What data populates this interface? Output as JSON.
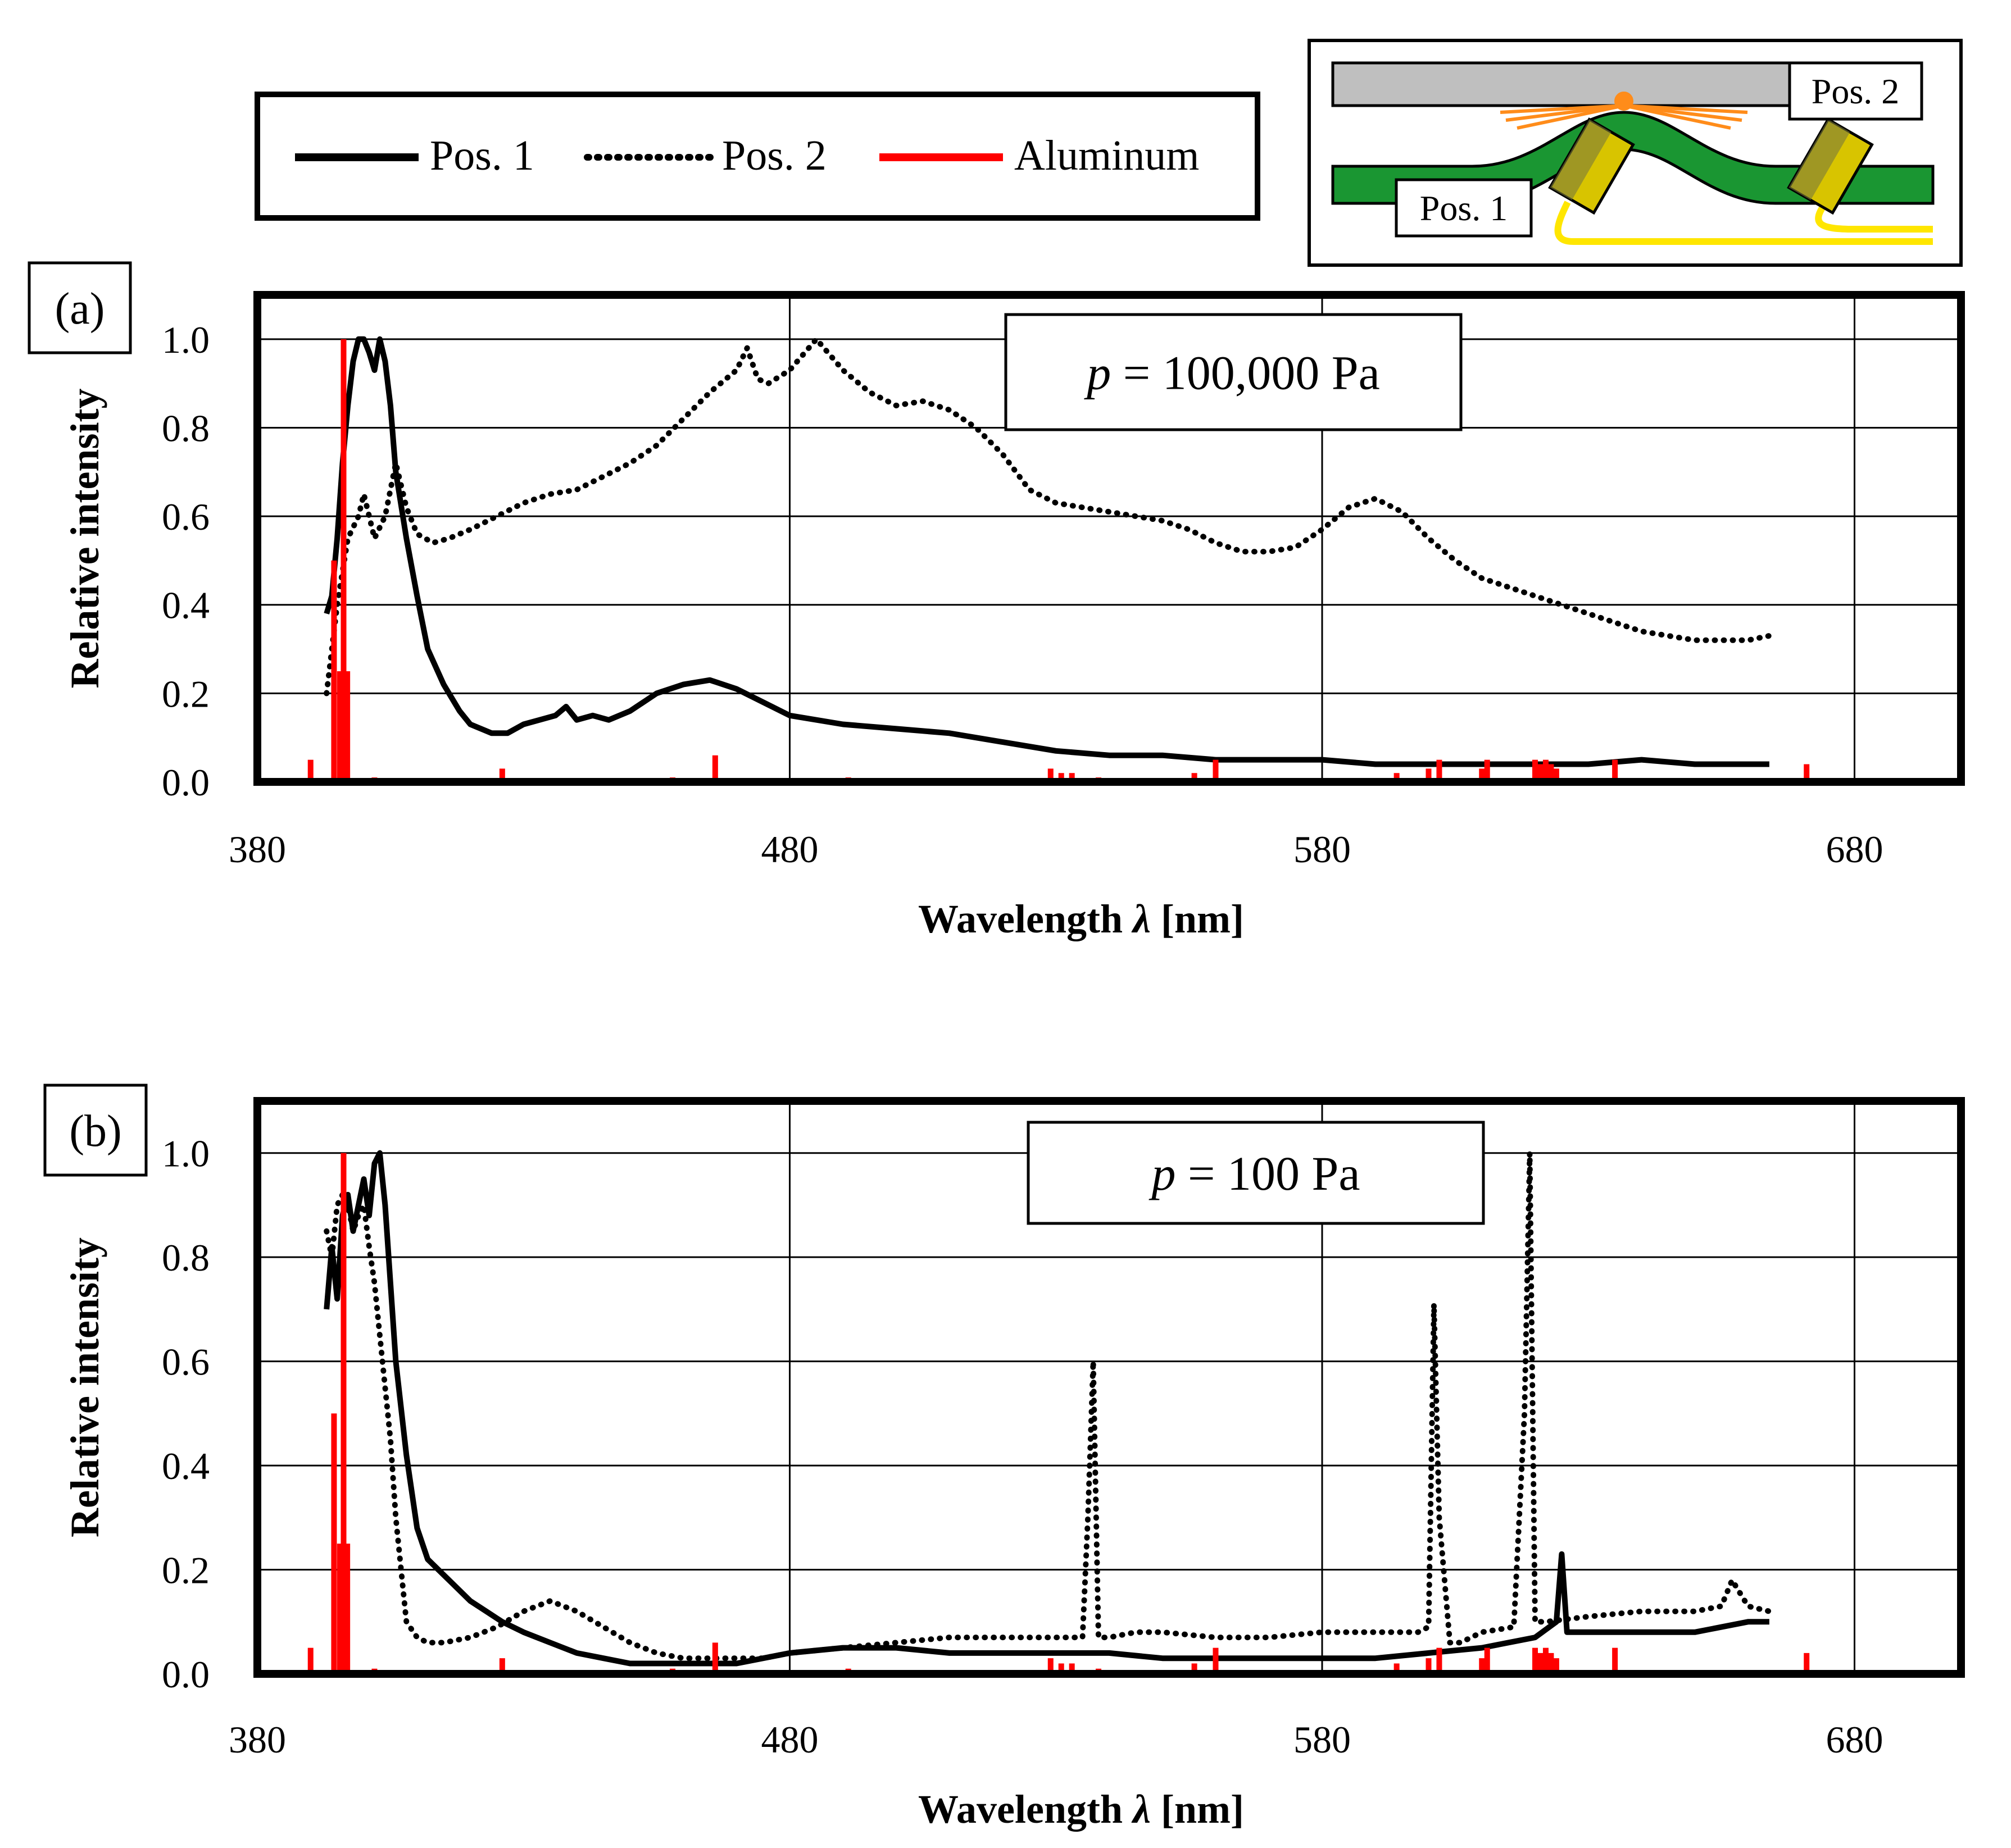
{
  "legend": {
    "items": [
      {
        "label": "Pos. 1",
        "style": "solid",
        "color": "#000000"
      },
      {
        "label": "Pos. 2",
        "style": "dotted",
        "color": "#000000"
      },
      {
        "label": "Aluminum",
        "style": "solid",
        "color": "#ff0000"
      }
    ]
  },
  "schematic": {
    "pos1_label": "Pos. 1",
    "pos2_label": "Pos. 2",
    "colors": {
      "plate": "#bfbfbf",
      "strip": "#1a9632",
      "arc": "#ff8c1a",
      "fiber": "#ffe600",
      "probe": "#c8b400"
    }
  },
  "colors": {
    "pos1": "#000000",
    "pos2": "#000000",
    "aluminum": "#ff0000",
    "grid": "#000000"
  },
  "chart_data": [
    {
      "panel_label": "(a)",
      "type": "line",
      "annotation": "p = 100,000 Pa",
      "annotation_var": "p",
      "annotation_rest": " = 100,000 Pa",
      "xlabel": "Wavelength",
      "xlabel_symbol": "λ",
      "xlabel_unit": " [nm]",
      "ylabel": "Relative intensity",
      "xlim": [
        380,
        700
      ],
      "ylim": [
        0,
        1.1
      ],
      "xticks": [
        "380",
        "480",
        "580",
        "680"
      ],
      "yticks": [
        "0.0",
        "0.2",
        "0.4",
        "0.6",
        "0.8",
        "1.0"
      ],
      "series": [
        {
          "name": "Pos. 1",
          "style": "solid",
          "x": [
            393,
            394,
            395,
            396,
            397,
            398,
            399,
            400,
            401,
            402,
            403,
            404,
            405,
            406,
            408,
            410,
            412,
            415,
            418,
            420,
            424,
            427,
            430,
            433,
            436,
            438,
            440,
            443,
            446,
            450,
            455,
            460,
            465,
            470,
            475,
            480,
            490,
            500,
            510,
            520,
            530,
            540,
            550,
            560,
            570,
            580,
            590,
            600,
            610,
            620,
            630,
            640,
            650,
            660,
            664
          ],
          "y": [
            0.38,
            0.42,
            0.55,
            0.72,
            0.85,
            0.95,
            1.0,
            1.0,
            0.97,
            0.93,
            1.0,
            0.95,
            0.85,
            0.7,
            0.55,
            0.42,
            0.3,
            0.22,
            0.16,
            0.13,
            0.11,
            0.11,
            0.13,
            0.14,
            0.15,
            0.17,
            0.14,
            0.15,
            0.14,
            0.16,
            0.2,
            0.22,
            0.23,
            0.21,
            0.18,
            0.15,
            0.13,
            0.12,
            0.11,
            0.09,
            0.07,
            0.06,
            0.06,
            0.05,
            0.05,
            0.05,
            0.04,
            0.04,
            0.04,
            0.04,
            0.04,
            0.05,
            0.04,
            0.04,
            0.04
          ]
        },
        {
          "name": "Pos. 2",
          "style": "dotted",
          "x": [
            393,
            395,
            397,
            399,
            400,
            402,
            404,
            406,
            408,
            410,
            413,
            416,
            420,
            425,
            430,
            435,
            440,
            445,
            450,
            455,
            460,
            465,
            470,
            472,
            474,
            476,
            480,
            485,
            490,
            495,
            500,
            505,
            510,
            515,
            520,
            525,
            530,
            535,
            540,
            545,
            550,
            555,
            560,
            565,
            570,
            575,
            580,
            585,
            590,
            595,
            600,
            605,
            610,
            615,
            620,
            625,
            630,
            635,
            640,
            645,
            650,
            655,
            660,
            664
          ],
          "y": [
            0.2,
            0.4,
            0.55,
            0.6,
            0.65,
            0.55,
            0.6,
            0.72,
            0.62,
            0.56,
            0.54,
            0.55,
            0.57,
            0.6,
            0.63,
            0.65,
            0.66,
            0.69,
            0.72,
            0.76,
            0.82,
            0.88,
            0.93,
            0.98,
            0.91,
            0.9,
            0.93,
            1.0,
            0.93,
            0.88,
            0.85,
            0.86,
            0.84,
            0.8,
            0.74,
            0.66,
            0.63,
            0.62,
            0.61,
            0.6,
            0.59,
            0.57,
            0.54,
            0.52,
            0.52,
            0.53,
            0.57,
            0.62,
            0.64,
            0.61,
            0.55,
            0.5,
            0.46,
            0.44,
            0.42,
            0.4,
            0.38,
            0.36,
            0.34,
            0.33,
            0.32,
            0.32,
            0.32,
            0.33
          ]
        },
        {
          "name": "Aluminum",
          "style": "sticks",
          "x": [
            390,
            394.4,
            395.5,
            396.2,
            396.9,
            402,
            426,
            458,
            466,
            491,
            511,
            529,
            531,
            533,
            538,
            556,
            560,
            584,
            594,
            600,
            602,
            610,
            611,
            620,
            621,
            622,
            623,
            624,
            635,
            671
          ],
          "y": [
            0.05,
            0.5,
            0.25,
            1.0,
            0.25,
            0.01,
            0.03,
            0.01,
            0.06,
            0.01,
            0.005,
            0.03,
            0.02,
            0.02,
            0.01,
            0.02,
            0.05,
            0.005,
            0.02,
            0.03,
            0.05,
            0.03,
            0.05,
            0.05,
            0.04,
            0.05,
            0.04,
            0.03,
            0.05,
            0.04
          ]
        }
      ]
    },
    {
      "panel_label": "(b)",
      "type": "line",
      "annotation": "p = 100 Pa",
      "annotation_var": "p",
      "annotation_rest": " = 100 Pa",
      "xlabel": "Wavelength",
      "xlabel_symbol": "λ",
      "xlabel_unit": " [nm]",
      "ylabel": "Relative intensity",
      "xlim": [
        380,
        700
      ],
      "ylim": [
        0,
        1.1
      ],
      "xticks": [
        "380",
        "480",
        "580",
        "680"
      ],
      "yticks": [
        "0.0",
        "0.2",
        "0.4",
        "0.6",
        "0.8",
        "1.0"
      ],
      "series": [
        {
          "name": "Pos. 1",
          "style": "solid",
          "x": [
            393,
            394,
            395,
            396,
            397,
            398,
            399,
            400,
            401,
            402,
            403,
            404,
            405,
            406,
            408,
            410,
            412,
            414,
            416,
            418,
            420,
            423,
            426,
            430,
            435,
            440,
            445,
            450,
            455,
            460,
            465,
            470,
            475,
            480,
            490,
            500,
            510,
            520,
            530,
            540,
            550,
            560,
            570,
            580,
            590,
            600,
            610,
            620,
            624,
            625,
            626,
            630,
            640,
            650,
            660,
            664
          ],
          "y": [
            0.7,
            0.82,
            0.72,
            0.88,
            0.92,
            0.85,
            0.9,
            0.95,
            0.88,
            0.98,
            1.0,
            0.9,
            0.75,
            0.6,
            0.42,
            0.28,
            0.22,
            0.2,
            0.18,
            0.16,
            0.14,
            0.12,
            0.1,
            0.08,
            0.06,
            0.04,
            0.03,
            0.02,
            0.02,
            0.02,
            0.02,
            0.02,
            0.03,
            0.04,
            0.05,
            0.05,
            0.04,
            0.04,
            0.04,
            0.04,
            0.03,
            0.03,
            0.03,
            0.03,
            0.03,
            0.04,
            0.05,
            0.07,
            0.1,
            0.23,
            0.08,
            0.08,
            0.08,
            0.08,
            0.1,
            0.1
          ]
        },
        {
          "name": "Pos. 2",
          "style": "dotted",
          "x": [
            393,
            394,
            395,
            396,
            397,
            398,
            399,
            400,
            401,
            402,
            403,
            404,
            405,
            406,
            407,
            408,
            410,
            412,
            415,
            420,
            425,
            430,
            435,
            440,
            445,
            450,
            455,
            460,
            465,
            470,
            475,
            480,
            490,
            500,
            510,
            520,
            530,
            535,
            536,
            537,
            538,
            540,
            545,
            550,
            560,
            570,
            580,
            590,
            598,
            600,
            601,
            602,
            604,
            606,
            610,
            616,
            618,
            619,
            620,
            622,
            630,
            640,
            650,
            655,
            657,
            660,
            664
          ],
          "y": [
            0.85,
            0.8,
            0.9,
            0.92,
            0.9,
            0.85,
            0.88,
            0.9,
            0.82,
            0.75,
            0.65,
            0.55,
            0.45,
            0.3,
            0.2,
            0.1,
            0.07,
            0.06,
            0.06,
            0.07,
            0.09,
            0.12,
            0.14,
            0.12,
            0.09,
            0.06,
            0.04,
            0.03,
            0.03,
            0.03,
            0.03,
            0.04,
            0.05,
            0.06,
            0.07,
            0.07,
            0.07,
            0.07,
            0.3,
            0.6,
            0.07,
            0.07,
            0.08,
            0.08,
            0.07,
            0.07,
            0.08,
            0.08,
            0.08,
            0.09,
            0.71,
            0.3,
            0.06,
            0.06,
            0.08,
            0.09,
            0.5,
            1.0,
            0.1,
            0.1,
            0.11,
            0.12,
            0.12,
            0.13,
            0.18,
            0.13,
            0.12
          ]
        },
        {
          "name": "Aluminum",
          "style": "sticks",
          "x": [
            390,
            394.4,
            395.5,
            396.2,
            396.9,
            402,
            426,
            458,
            466,
            491,
            511,
            529,
            531,
            533,
            538,
            556,
            560,
            584,
            594,
            600,
            602,
            610,
            611,
            620,
            621,
            622,
            623,
            624,
            635,
            671
          ],
          "y": [
            0.05,
            0.5,
            0.25,
            1.0,
            0.25,
            0.01,
            0.03,
            0.01,
            0.06,
            0.01,
            0.005,
            0.03,
            0.02,
            0.02,
            0.01,
            0.02,
            0.05,
            0.005,
            0.02,
            0.03,
            0.05,
            0.03,
            0.05,
            0.05,
            0.04,
            0.05,
            0.04,
            0.03,
            0.05,
            0.04
          ]
        }
      ]
    }
  ]
}
